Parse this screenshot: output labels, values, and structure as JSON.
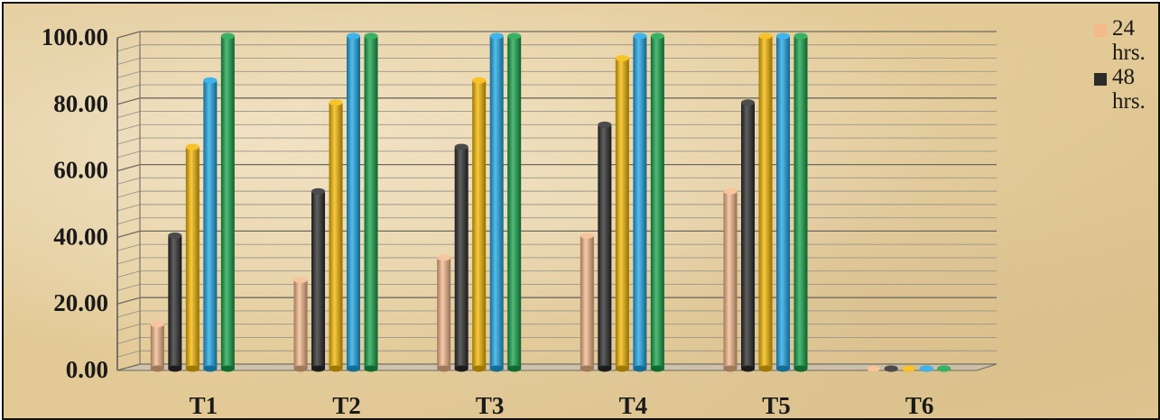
{
  "chart_data": {
    "type": "bar",
    "categories": [
      "T1",
      "T2",
      "T3",
      "T4",
      "T5",
      "T6"
    ],
    "series": [
      {
        "name": "24 hrs.",
        "values": [
          13.33,
          26.67,
          33.33,
          40.0,
          53.33,
          0.0
        ]
      },
      {
        "name": "48 hrs.",
        "values": [
          40.0,
          53.33,
          66.67,
          73.33,
          80.0,
          0.0
        ]
      },
      {
        "values": [
          66.67,
          80.0,
          86.67,
          93.33,
          100.0,
          0.0
        ]
      },
      {
        "values": [
          86.67,
          100.0,
          100.0,
          100.0,
          100.0,
          0.0
        ]
      },
      {
        "values": [
          100.0,
          100.0,
          100.0,
          100.0,
          100.0,
          0.0
        ]
      }
    ],
    "yticks": [
      "0.00",
      "20.00",
      "40.00",
      "60.00",
      "80.00",
      "100.00"
    ],
    "ylim": [
      0,
      100
    ],
    "grid": true,
    "legend_position": "top-right",
    "colors": [
      "#f6b98c",
      "#2b2b2b",
      "#f5b800",
      "#1ea7e6",
      "#16a34a"
    ]
  },
  "legend": {
    "items": [
      {
        "label_line1": "24",
        "label_line2": "hrs.",
        "color": "#f6b98c"
      },
      {
        "label_line1": "48",
        "label_line2": "hrs.",
        "color": "#2b2b2b"
      }
    ]
  }
}
